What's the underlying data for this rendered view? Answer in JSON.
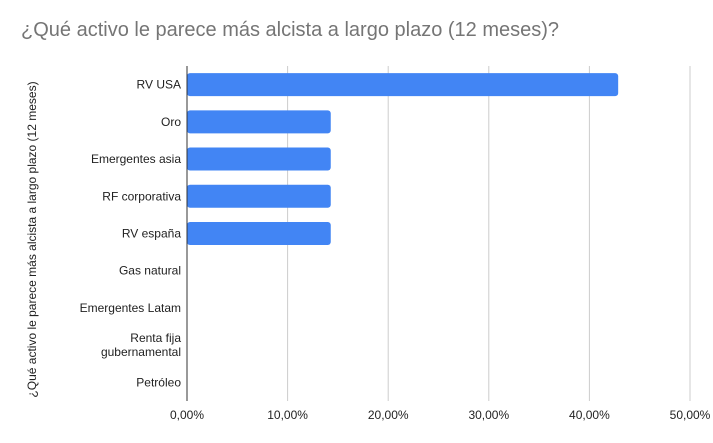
{
  "chart_data": {
    "type": "bar",
    "orientation": "horizontal",
    "title": "¿Qué activo le parece más alcista a largo plazo (12 meses)?",
    "ylabel": "¿Qué activo le parece más alcista a largo plazo (12 meses)",
    "xlabel": "",
    "categories": [
      "RV USA",
      "Oro",
      "Emergentes asia",
      "RF corporativa",
      "RV españa",
      "Gas natural",
      "Emergentes Latam",
      "Renta fija gubernamental",
      "Petróleo"
    ],
    "category_lines": [
      [
        "RV USA"
      ],
      [
        "Oro"
      ],
      [
        "Emergentes asia"
      ],
      [
        "RF corporativa"
      ],
      [
        "RV españa"
      ],
      [
        "Gas natural"
      ],
      [
        "Emergentes Latam"
      ],
      [
        "Renta fija",
        "gubernamental"
      ],
      [
        "Petróleo"
      ]
    ],
    "values": [
      0.4286,
      0.1429,
      0.1429,
      0.1429,
      0.1429,
      0,
      0,
      0,
      0
    ],
    "xlim": [
      0,
      0.5
    ],
    "x_ticks": [
      0,
      0.1,
      0.2,
      0.3,
      0.4,
      0.5
    ],
    "x_tick_labels": [
      "0,00%",
      "10,00%",
      "20,00%",
      "30,00%",
      "40,00%",
      "50,00%"
    ],
    "grid": true,
    "legend": "none",
    "colors": {
      "bar": "#4285f4",
      "grid": "#cccccc",
      "axis": "#333333",
      "title": "#757575",
      "text": "#222222"
    }
  }
}
